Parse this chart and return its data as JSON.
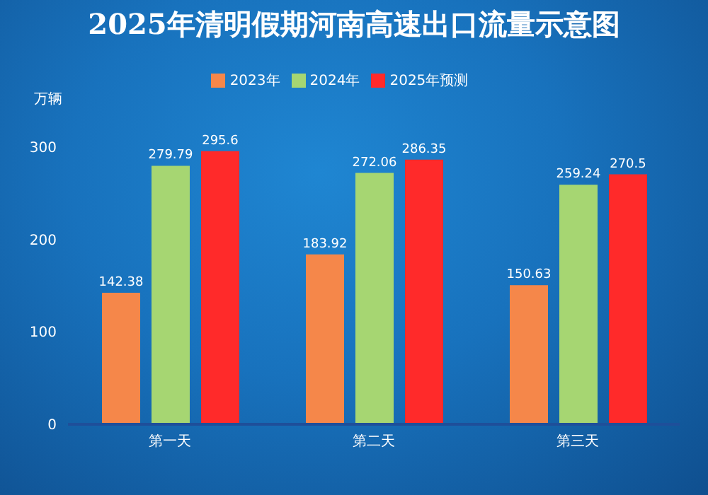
{
  "chart_data": {
    "type": "bar",
    "title": "2025年清明假期河南高速出口流量示意图",
    "ylabel": "万辆",
    "categories": [
      "第一天",
      "第二天",
      "第三天"
    ],
    "series": [
      {
        "name": "2023年",
        "color": "#f5874a",
        "values": [
          142.38,
          183.92,
          150.63
        ]
      },
      {
        "name": "2024年",
        "color": "#a6d672",
        "values": [
          279.79,
          272.06,
          259.24
        ]
      },
      {
        "name": "2025年预测",
        "color": "#ff2a2a",
        "values": [
          295.6,
          286.35,
          270.5
        ]
      }
    ],
    "ylim": [
      0,
      300
    ],
    "yticks": [
      0,
      100,
      200,
      300
    ],
    "grid": false,
    "legend": "top",
    "data_labels": true
  }
}
